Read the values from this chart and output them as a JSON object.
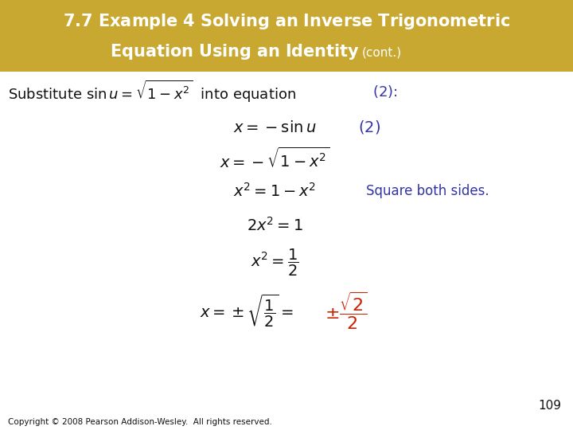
{
  "header_bg_color": "#C8A830",
  "header_text_color": "#FFFFFF",
  "body_bg_color": "#FFFFFF",
  "blue_color": "#3333AA",
  "red_color": "#CC2200",
  "black_color": "#111111",
  "page_number": "109",
  "copyright": "Copyright © 2008 Pearson Addison-Wesley.  All rights reserved."
}
